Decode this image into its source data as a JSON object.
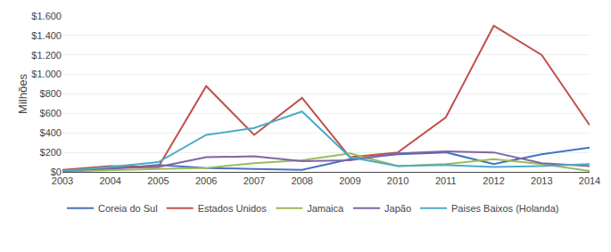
{
  "chart_data": {
    "type": "line",
    "x": [
      2003,
      2004,
      2005,
      2006,
      2007,
      2008,
      2009,
      2010,
      2011,
      2012,
      2013,
      2014
    ],
    "series": [
      {
        "name": "Coreia do Sul",
        "color": "#4472C4",
        "values": [
          10,
          30,
          70,
          40,
          30,
          20,
          130,
          180,
          200,
          80,
          180,
          250
        ]
      },
      {
        "name": "Estados Unidos",
        "color": "#C0504D",
        "values": [
          20,
          60,
          50,
          880,
          380,
          760,
          150,
          200,
          560,
          1500,
          1200,
          480
        ]
      },
      {
        "name": "Jamaica",
        "color": "#9BBB59",
        "values": [
          5,
          20,
          30,
          40,
          90,
          120,
          190,
          60,
          80,
          130,
          80,
          10
        ]
      },
      {
        "name": "Japão",
        "color": "#8064A2",
        "values": [
          10,
          40,
          50,
          150,
          160,
          110,
          120,
          190,
          210,
          200,
          90,
          60
        ]
      },
      {
        "name": "Paises Baixos (Holanda)",
        "color": "#4BACC6",
        "values": [
          10,
          50,
          100,
          380,
          450,
          620,
          150,
          60,
          70,
          50,
          60,
          80
        ]
      }
    ],
    "y_label": "Milhões",
    "xlim": [
      2003,
      2014
    ],
    "xticks": [
      2003,
      2004,
      2005,
      2006,
      2007,
      2008,
      2009,
      2010,
      2011,
      2012,
      2013,
      2014
    ],
    "ylim": [
      0,
      1600
    ],
    "yticks": [
      {
        "value": 0,
        "label": "$0"
      },
      {
        "value": 200,
        "label": "$200"
      },
      {
        "value": 400,
        "label": "$400"
      },
      {
        "value": 600,
        "label": "$600"
      },
      {
        "value": 800,
        "label": "$800"
      },
      {
        "value": 1000,
        "label": "$1.000"
      },
      {
        "value": 1200,
        "label": "$1.200"
      },
      {
        "value": 1400,
        "label": "$1.400"
      },
      {
        "value": 1600,
        "label": "$1.600"
      }
    ],
    "grid": "y",
    "legend": "bottom"
  }
}
